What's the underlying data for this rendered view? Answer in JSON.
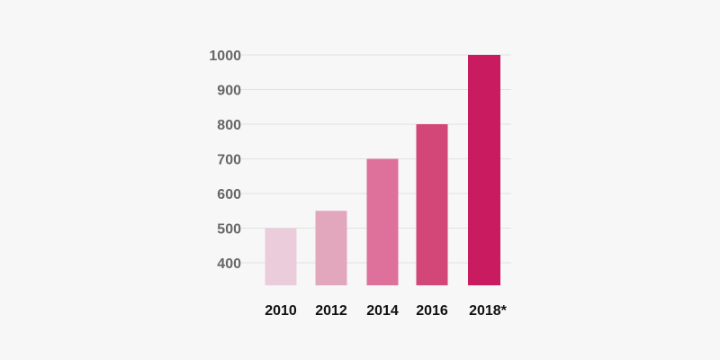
{
  "chart_data": {
    "type": "bar",
    "categories": [
      "2010",
      "2012",
      "2014",
      "2016",
      "2018*"
    ],
    "values": [
      500,
      550,
      700,
      800,
      1000
    ],
    "ylim": [
      335,
      1000
    ],
    "yticks": [
      400,
      500,
      600,
      700,
      800,
      900,
      1000
    ],
    "grid": true,
    "legend": "none",
    "title": "",
    "xlabel": "",
    "ylabel": "",
    "bar_colors": [
      "#ebccdb",
      "#e2a6bd",
      "#de719b",
      "#d24778",
      "#c91b5f"
    ]
  }
}
